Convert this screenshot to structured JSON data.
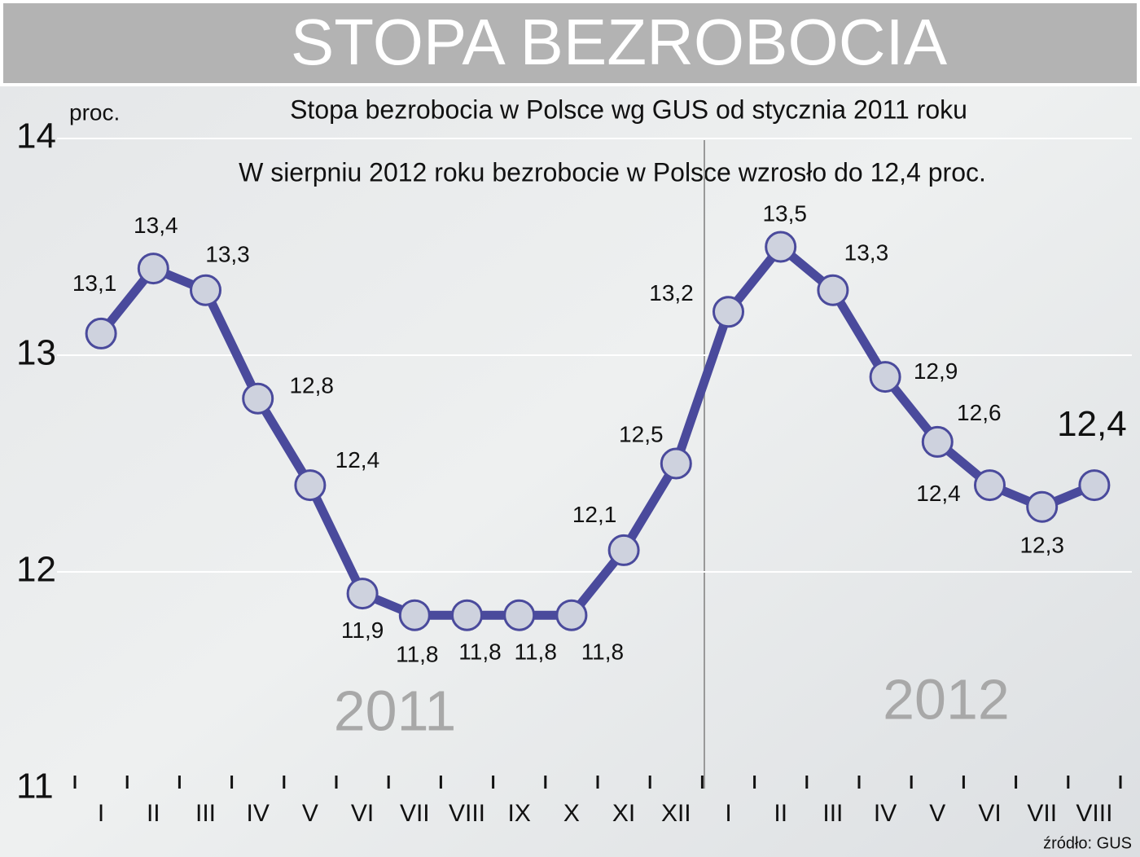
{
  "chart_data": {
    "type": "line",
    "title": "STOPA BEZROBOCIA",
    "subtitle": "Stopa bezrobocia w Polsce wg GUS od stycznia 2011 roku",
    "annotation": "W sierpniu 2012 roku bezrobocie w Polsce wzrosło do 12,4 proc.",
    "y_label": "proc.",
    "source": "źródło: GUS",
    "year_labels": [
      "2011",
      "2012"
    ],
    "categories": [
      "I",
      "II",
      "III",
      "IV",
      "V",
      "VI",
      "VII",
      "VIII",
      "IX",
      "X",
      "XI",
      "XII",
      "I",
      "II",
      "III",
      "IV",
      "V",
      "VI",
      "VII",
      "VIII"
    ],
    "series": [
      {
        "name": "Stopa bezrobocia",
        "color": "#4a4a9c",
        "values": [
          13.1,
          13.4,
          13.3,
          12.8,
          12.4,
          11.9,
          11.8,
          11.8,
          11.8,
          11.8,
          12.1,
          12.5,
          13.2,
          13.5,
          13.3,
          12.9,
          12.6,
          12.4,
          12.3,
          12.4
        ],
        "value_labels": [
          "13,1",
          "13,4",
          "13,3",
          "12,8",
          "12,4",
          "11,9",
          "11,8",
          "11,8",
          "11,8",
          "11,8",
          "12,1",
          "12,5",
          "13,2",
          "13,5",
          "13,3",
          "12,9",
          "12,6",
          "12,4",
          "12,3",
          "12,4"
        ]
      }
    ],
    "ylim": [
      11,
      14
    ],
    "yticks": [
      11,
      12,
      13,
      14
    ],
    "grid": true
  }
}
